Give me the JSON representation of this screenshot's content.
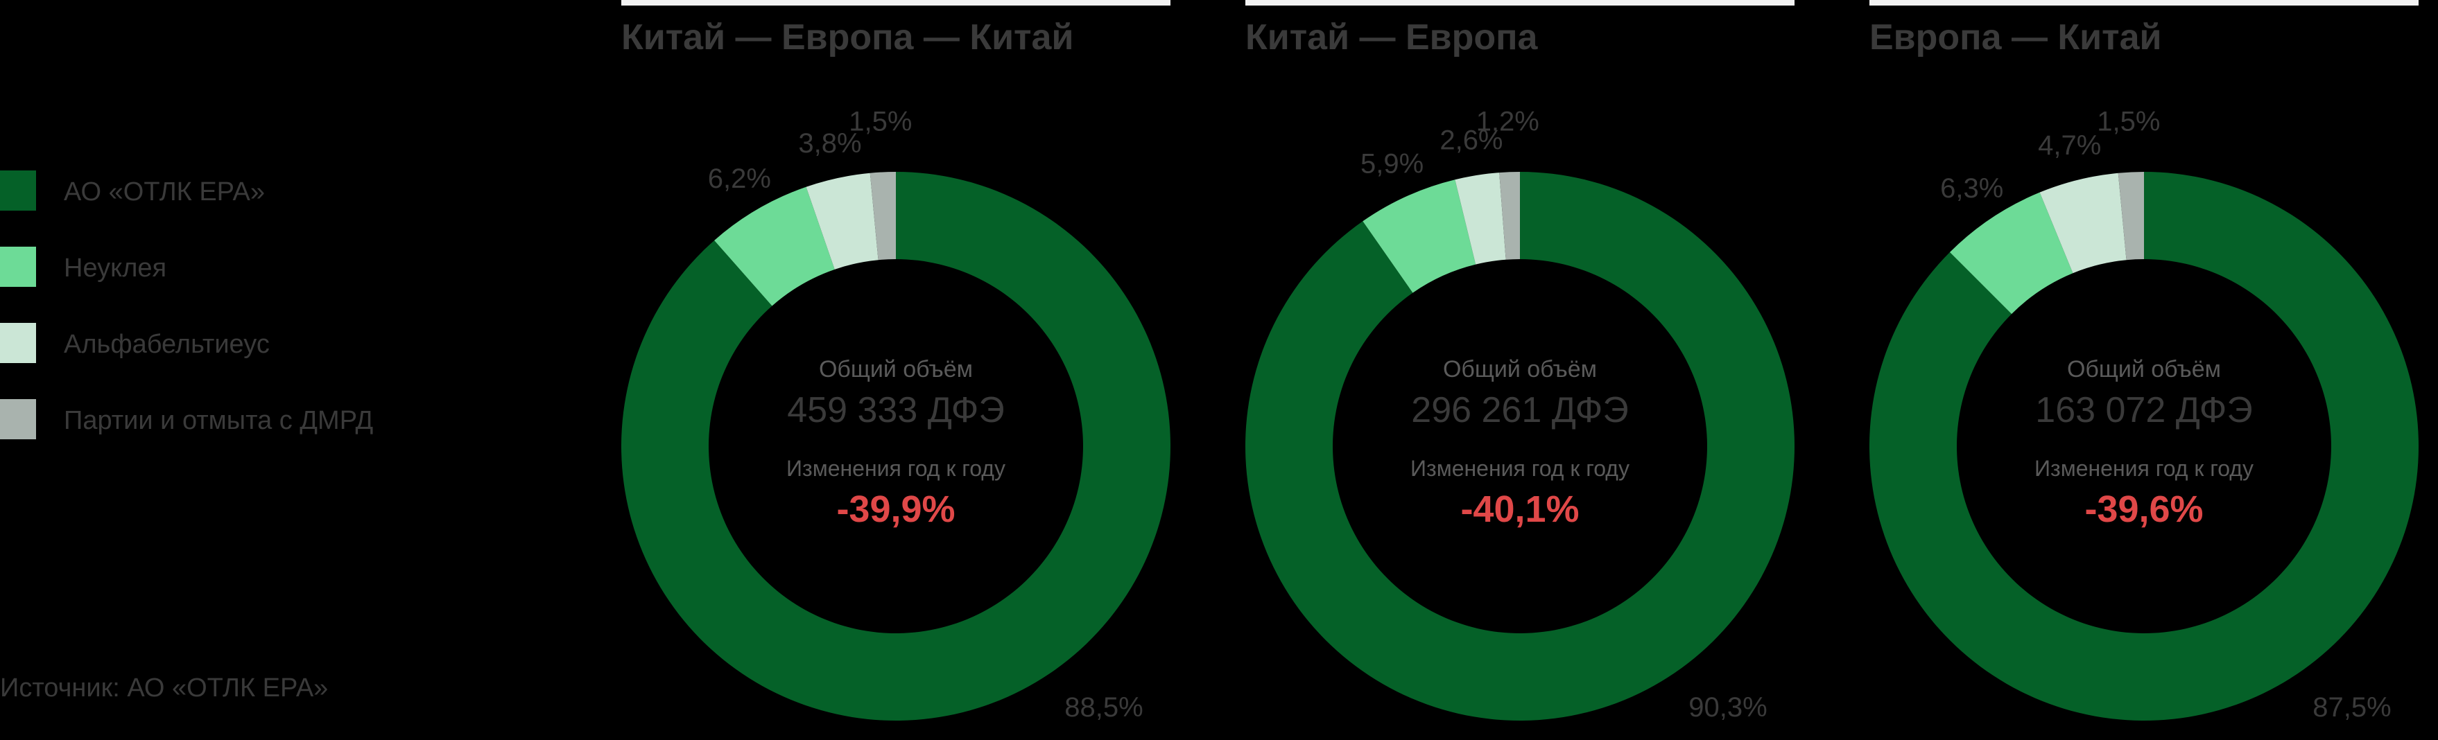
{
  "legend": [
    {
      "label": "АО «ОТЛК ЕРА»",
      "color": "#056128"
    },
    {
      "label": "Неуклея",
      "color": "#6ddb97"
    },
    {
      "label": "Альфабельтиеус",
      "color": "#cbe6d6"
    },
    {
      "label": "Партии и отмыта с ДМРД",
      "color": "#a9b3ae"
    }
  ],
  "source": "Источник: АО «ОТЛК ЕРА»",
  "chart_data": [
    {
      "type": "pie",
      "title": "Китай — Европа — Китай",
      "total_label": "Общий объём",
      "total_value": "459 333 ДФЭ",
      "change_label": "Изменения год к году",
      "change_value": "-39,9%",
      "categories": [
        "АО «ОТЛК ЕРА»",
        "Неуклея",
        "Альфабельтиеус",
        "Партии и отмыта с ДМРД"
      ],
      "values": [
        88.5,
        6.2,
        3.8,
        1.5
      ],
      "labels": [
        "88,5%",
        "6,2%",
        "3,8%",
        "1,5%"
      ]
    },
    {
      "type": "pie",
      "title": "Китай — Европа",
      "total_label": "Общий объём",
      "total_value": "296 261 ДФЭ",
      "change_label": "Изменения год к году",
      "change_value": "-40,1%",
      "categories": [
        "АО «ОТЛК ЕРА»",
        "Неуклея",
        "Альфабельтиеус",
        "Партии и отмыта с ДМРД"
      ],
      "values": [
        90.3,
        5.9,
        2.6,
        1.2
      ],
      "labels": [
        "90,3%",
        "5,9%",
        "2,6%",
        "1,2%"
      ]
    },
    {
      "type": "pie",
      "title": "Европа — Китай",
      "total_label": "Общий объём",
      "total_value": "163 072 ДФЭ",
      "change_label": "Изменения год к году",
      "change_value": "-39,6%",
      "categories": [
        "АО «ОТЛК ЕРА»",
        "Неуклея",
        "Альфабельтиеус",
        "Партии и отмыта с ДМРД"
      ],
      "values": [
        87.5,
        6.3,
        4.7,
        1.5
      ],
      "labels": [
        "87,5%",
        "6,3%",
        "4,7%",
        "1,5%"
      ]
    }
  ]
}
